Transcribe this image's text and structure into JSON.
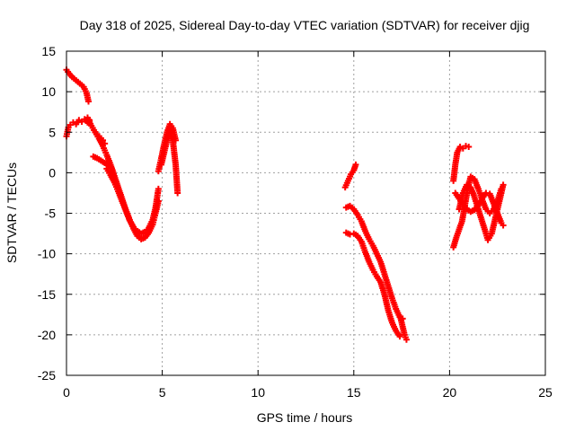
{
  "colors": {
    "series": "#ff0000",
    "grid": "#a0a0a0",
    "axis": "#000000",
    "background": "#ffffff"
  },
  "chart_data": {
    "type": "scatter",
    "title": "Day 318 of 2025, Sidereal Day-to-day VTEC variation (SDTVAR) for receiver djig",
    "xlabel": "GPS time / hours",
    "ylabel": "SDTVAR / TECUs",
    "xlim": [
      0,
      25
    ],
    "ylim": [
      -25,
      15
    ],
    "x_ticks": [
      0,
      5,
      10,
      15,
      20,
      25
    ],
    "y_ticks": [
      -25,
      -20,
      -15,
      -10,
      -5,
      0,
      5,
      10,
      15
    ],
    "grid": true,
    "marker": "plus",
    "series": [
      {
        "name": "SDTVAR",
        "segments": [
          {
            "x": [
              0.0,
              0.15,
              0.3,
              0.5,
              0.7,
              0.9,
              1.05,
              1.15
            ],
            "y": [
              12.7,
              12.2,
              11.8,
              11.4,
              11.0,
              10.6,
              9.8,
              8.8
            ]
          },
          {
            "x": [
              0.0,
              0.1,
              0.2,
              0.35,
              0.5,
              0.65,
              0.8,
              0.95,
              1.1,
              1.2
            ],
            "y": [
              4.5,
              5.6,
              5.9,
              6.2,
              6.0,
              6.5,
              6.3,
              6.6,
              6.2,
              6.5
            ]
          },
          {
            "x": [
              1.1,
              1.3,
              1.5,
              1.7,
              1.9,
              2.0
            ],
            "y": [
              6.8,
              5.8,
              5.0,
              4.5,
              4.0,
              3.6
            ]
          },
          {
            "x": [
              1.4,
              1.6,
              1.8,
              2.0,
              2.2,
              2.4
            ],
            "y": [
              2.0,
              1.8,
              1.5,
              1.2,
              0.8,
              0.3
            ]
          },
          {
            "x": [
              1.5,
              1.7,
              1.9,
              2.1,
              2.3,
              2.5,
              2.7,
              2.9,
              3.1,
              3.3,
              3.5,
              3.7,
              3.9,
              4.1,
              4.3,
              4.5,
              4.65,
              4.8
            ],
            "y": [
              5.0,
              4.2,
              3.3,
              2.2,
              1.0,
              -0.4,
              -1.8,
              -3.2,
              -4.6,
              -5.8,
              -6.9,
              -7.8,
              -8.2,
              -8.0,
              -7.4,
              -6.4,
              -5.0,
              -3.5
            ]
          },
          {
            "x": [
              2.1,
              2.3,
              2.5,
              2.7,
              2.9,
              3.1,
              3.3,
              3.5,
              3.7,
              3.9,
              4.1,
              4.3,
              4.5,
              4.65,
              4.8
            ],
            "y": [
              0.5,
              -0.3,
              -1.2,
              -2.3,
              -3.5,
              -4.7,
              -5.9,
              -6.7,
              -7.2,
              -7.5,
              -7.3,
              -6.8,
              -5.8,
              -4.3,
              -2.0
            ]
          },
          {
            "x": [
              4.8,
              4.95,
              5.1,
              5.25,
              5.4,
              5.55,
              5.7
            ],
            "y": [
              0.2,
              1.8,
              3.5,
              5.0,
              6.0,
              5.5,
              4.0
            ]
          },
          {
            "x": [
              4.95,
              5.1,
              5.25,
              5.4,
              5.55,
              5.7,
              5.8
            ],
            "y": [
              1.0,
              2.5,
              4.0,
              5.2,
              4.0,
              1.0,
              -2.5
            ]
          },
          {
            "x": [
              14.55,
              14.7,
              14.85,
              15.0,
              15.1
            ],
            "y": [
              -1.8,
              -1.0,
              -0.2,
              0.3,
              1.0
            ]
          },
          {
            "x": [
              14.6,
              14.8,
              15.0,
              15.2,
              15.4,
              15.6,
              15.8,
              16.0,
              16.2,
              16.4,
              16.6,
              16.8,
              17.0,
              17.2,
              17.4,
              17.55
            ],
            "y": [
              -4.3,
              -4.1,
              -4.5,
              -5.2,
              -6.0,
              -7.2,
              -8.2,
              -9.0,
              -10.0,
              -11.0,
              -12.5,
              -14.0,
              -15.5,
              -16.8,
              -17.8,
              -18.0
            ]
          },
          {
            "x": [
              14.6,
              14.8,
              15.0,
              15.2,
              15.4,
              15.6,
              15.8,
              16.0,
              16.2,
              16.4,
              16.6,
              16.8,
              17.0,
              17.2,
              17.4
            ],
            "y": [
              -7.4,
              -7.6,
              -7.5,
              -7.8,
              -8.5,
              -9.8,
              -11.0,
              -12.0,
              -12.8,
              -13.5,
              -15.0,
              -17.0,
              -18.5,
              -19.5,
              -20.2
            ]
          },
          {
            "x": [
              17.45,
              17.55,
              17.65,
              17.75
            ],
            "y": [
              -18.0,
              -19.0,
              -20.0,
              -20.6
            ]
          },
          {
            "x": [
              20.2,
              20.3,
              20.4,
              20.55,
              20.7,
              20.85,
              21.0
            ],
            "y": [
              -1.0,
              1.0,
              2.5,
              3.2,
              3.0,
              3.3,
              3.2
            ]
          },
          {
            "x": [
              20.2,
              20.35,
              20.5,
              20.65,
              20.8,
              20.95,
              21.1,
              21.3,
              21.5,
              21.7,
              21.9,
              22.1,
              22.3,
              22.5,
              22.7
            ],
            "y": [
              -9.2,
              -8.0,
              -7.0,
              -6.0,
              -4.0,
              -2.0,
              -0.5,
              -0.8,
              -2.0,
              -3.3,
              -4.5,
              -5.0,
              -4.5,
              -3.5,
              -2.0
            ]
          },
          {
            "x": [
              20.3,
              20.5,
              20.7,
              20.9,
              21.1,
              21.3,
              21.5,
              21.7,
              21.9,
              22.1,
              22.3,
              22.5,
              22.7,
              22.8
            ],
            "y": [
              -2.5,
              -3.2,
              -4.0,
              -4.5,
              -4.8,
              -4.6,
              -4.0,
              -3.2,
              -2.5,
              -2.6,
              -3.8,
              -5.0,
              -6.2,
              -6.5
            ]
          },
          {
            "x": [
              20.5,
              20.7,
              20.9,
              21.1,
              21.3,
              21.5,
              21.7,
              21.9,
              22.0,
              22.2,
              22.4,
              22.6,
              22.8
            ],
            "y": [
              -4.5,
              -2.5,
              -1.5,
              -1.8,
              -3.0,
              -4.5,
              -6.0,
              -7.5,
              -8.3,
              -7.5,
              -5.5,
              -3.5,
              -1.5
            ]
          }
        ]
      }
    ]
  }
}
